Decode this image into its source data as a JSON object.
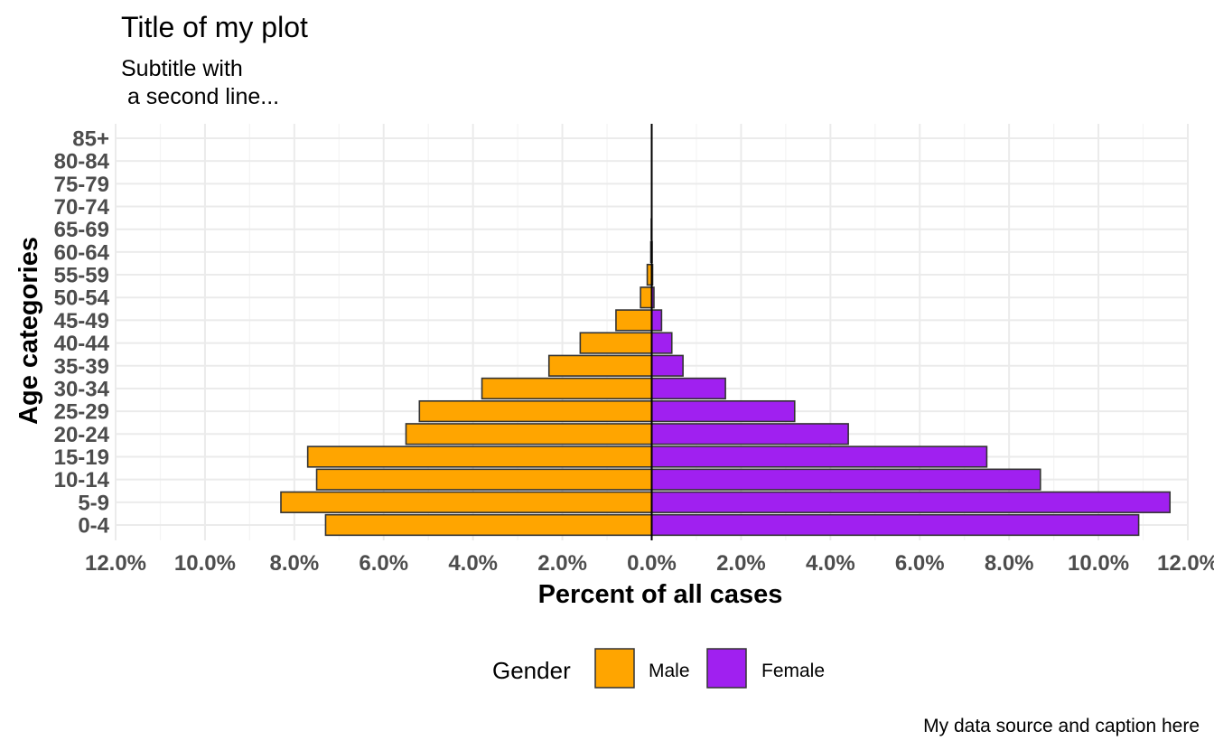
{
  "chart_data": {
    "type": "bar",
    "orientation": "horizontal",
    "title": "Title of my plot",
    "subtitle": [
      "Subtitle with",
      " a second line..."
    ],
    "xlabel": "Percent of all cases",
    "ylabel": "Age categories",
    "caption": "My data source and caption here",
    "categories": [
      "0-4",
      "5-9",
      "10-14",
      "15-19",
      "20-24",
      "25-29",
      "30-34",
      "35-39",
      "40-44",
      "45-49",
      "50-54",
      "55-59",
      "60-64",
      "65-69",
      "70-74",
      "75-79",
      "80-84",
      "85+"
    ],
    "series": [
      {
        "name": "Male",
        "color": "#FFA500",
        "values": [
          7.3,
          8.3,
          7.5,
          7.7,
          5.5,
          5.2,
          3.8,
          2.3,
          1.6,
          0.8,
          0.25,
          0.1,
          0.02,
          0.01,
          0.0,
          0.0,
          0.0,
          0.0
        ]
      },
      {
        "name": "Female",
        "color": "#A020F0",
        "values": [
          10.9,
          11.6,
          8.7,
          7.5,
          4.4,
          3.2,
          1.65,
          0.7,
          0.45,
          0.22,
          0.05,
          0.02,
          0.01,
          0.0,
          0.0,
          0.0,
          0.0,
          0.0
        ]
      }
    ],
    "xlim": [
      -12,
      12
    ],
    "xticks": [
      -12,
      -10,
      -8,
      -6,
      -4,
      -2,
      0,
      2,
      4,
      6,
      8,
      10,
      12
    ],
    "xtick_labels": [
      "12.0%",
      "10.0%",
      "8.0%",
      "6.0%",
      "4.0%",
      "2.0%",
      "0.0%",
      "2.0%",
      "4.0%",
      "6.0%",
      "8.0%",
      "10.0%",
      "12.0%"
    ],
    "grid": true,
    "legend": {
      "title": "Gender",
      "position": "bottom",
      "items": [
        "Male",
        "Female"
      ]
    }
  }
}
